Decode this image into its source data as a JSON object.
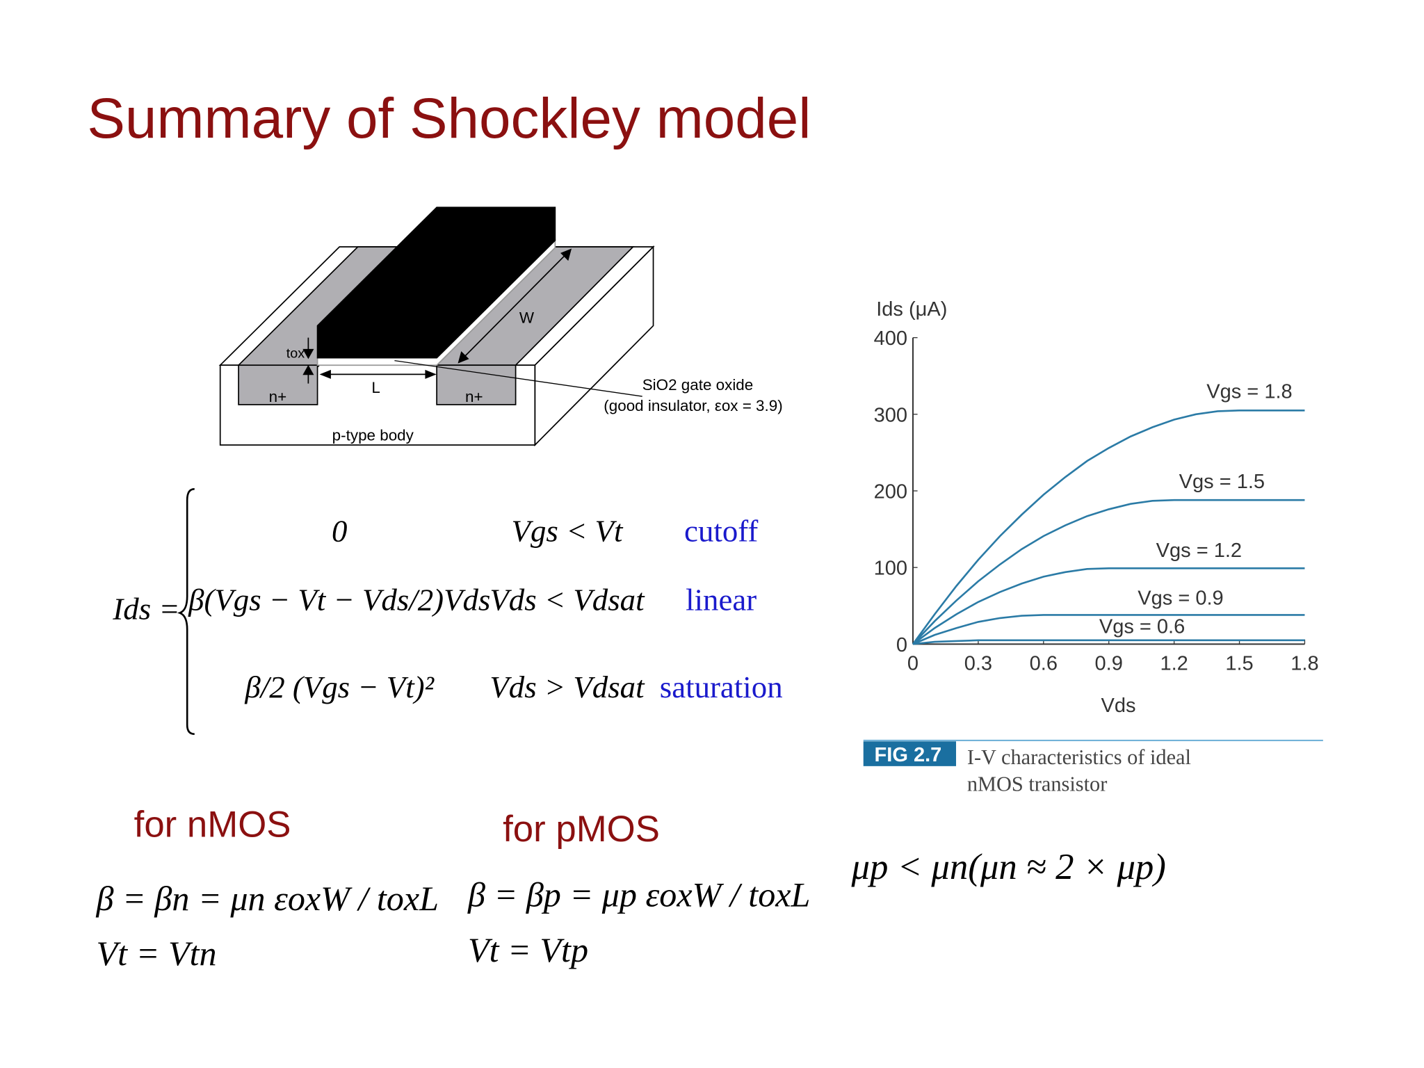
{
  "title": "Summary of Shockley model",
  "diagram": {
    "labels": {
      "w": "W",
      "tox": "tox",
      "l": "L",
      "n_left": "n+",
      "n_right": "n+",
      "body": "p-type body",
      "oxide": "SiO2 gate oxide",
      "insulator": "(good insulator, εox = 3.9)"
    }
  },
  "equation": {
    "lhs": "Ids =",
    "cases": [
      {
        "expr": "0",
        "condition": "Vgs < Vt",
        "region": "cutoff"
      },
      {
        "expr": "β(Vgs − Vt − Vds/2)Vds",
        "condition": "Vds < Vdsat",
        "region": "linear"
      },
      {
        "expr": "β/2 (Vgs − Vt)²",
        "condition": "Vds > Vdsat",
        "region": "saturation"
      }
    ]
  },
  "nmos": {
    "heading": "for nMOS",
    "beta": "β = βn = μn εoxW / toxL",
    "vt": "Vt = Vtn"
  },
  "pmos": {
    "heading": "for pMOS",
    "beta": "β = βp = μp εoxW / toxL",
    "vt": "Vt = Vtp"
  },
  "mobility": "μp < μn(μn ≈ 2 × μp)",
  "caption": {
    "tag": "FIG 2.7",
    "lines": [
      "I-V characteristics of ideal",
      "nMOS transistor"
    ]
  },
  "chart_data": {
    "type": "line",
    "x_label": "Vds",
    "y_label": "Ids (μA)",
    "x": [
      0,
      0.1,
      0.2,
      0.3,
      0.4,
      0.5,
      0.6,
      0.7,
      0.8,
      0.9,
      1.0,
      1.1,
      1.2,
      1.3,
      1.4,
      1.5,
      1.6,
      1.7,
      1.8
    ],
    "series": [
      {
        "name": "Vgs = 0.6",
        "color": "#2b7ba6",
        "values": [
          0,
          3,
          4,
          5,
          5,
          5,
          5,
          5,
          5,
          5,
          5,
          5,
          5,
          5,
          5,
          5,
          5,
          5,
          5
        ]
      },
      {
        "name": "Vgs = 0.9",
        "color": "#2b7ba6",
        "values": [
          0,
          12,
          21,
          29,
          34,
          37,
          38,
          38,
          38,
          38,
          38,
          38,
          38,
          38,
          38,
          38,
          38,
          38,
          38
        ]
      },
      {
        "name": "Vgs = 1.2",
        "color": "#2b7ba6",
        "values": [
          0,
          21,
          39,
          55,
          68,
          79,
          88,
          94,
          98,
          99,
          99,
          99,
          99,
          99,
          99,
          99,
          99,
          99,
          99
        ]
      },
      {
        "name": "Vgs = 1.5",
        "color": "#2b7ba6",
        "values": [
          0,
          30,
          57,
          82,
          104,
          124,
          141,
          155,
          167,
          176,
          183,
          187,
          188,
          188,
          188,
          188,
          188,
          188,
          188
        ]
      },
      {
        "name": "Vgs = 1.8",
        "color": "#2b7ba6",
        "values": [
          0,
          39,
          76,
          110,
          141,
          169,
          195,
          218,
          239,
          256,
          271,
          283,
          293,
          300,
          304,
          305,
          305,
          305,
          305
        ]
      }
    ],
    "xlim": [
      0,
      1.8
    ],
    "xticks": [
      0,
      0.3,
      0.6,
      0.9,
      1.2,
      1.5,
      1.8
    ],
    "ylim": [
      0,
      400
    ],
    "yticks": [
      0,
      100,
      200,
      300,
      400
    ],
    "grid": false
  }
}
